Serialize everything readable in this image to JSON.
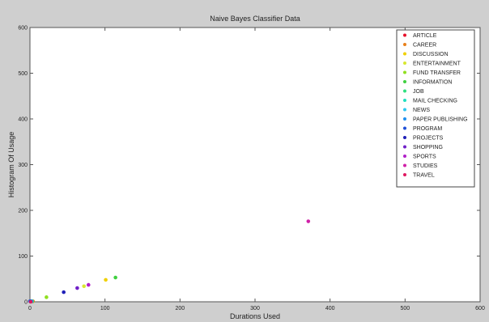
{
  "chart_data": {
    "type": "scatter",
    "title": "Naive Bayes Classifier Data",
    "xlabel": "Durations Used",
    "ylabel": "Histogram Of Usage",
    "xlim": [
      0,
      600
    ],
    "ylim": [
      0,
      600
    ],
    "xticks": [
      0,
      100,
      200,
      300,
      400,
      500,
      600
    ],
    "yticks": [
      0,
      100,
      200,
      300,
      400,
      500,
      600
    ],
    "grid": false,
    "legend_position": "top-right",
    "background": "#ffffff",
    "figure_background": "#cfcfcf",
    "series": [
      {
        "name": "ARTICLE",
        "color": "#e8102a",
        "x": 2,
        "y": 1
      },
      {
        "name": "CAREER",
        "color": "#e8801a",
        "x": 4,
        "y": 1
      },
      {
        "name": "DISCUSSION",
        "color": "#f0d000",
        "x": 101,
        "y": 48
      },
      {
        "name": "ENTERTAINMENT",
        "color": "#d8e830",
        "x": 72,
        "y": 34
      },
      {
        "name": "FUND TRANSFER",
        "color": "#90e020",
        "x": 22,
        "y": 10
      },
      {
        "name": "INFORMATION",
        "color": "#40d040",
        "x": 114,
        "y": 53
      },
      {
        "name": "JOB",
        "color": "#30e080",
        "x": 3,
        "y": 1
      },
      {
        "name": "MAIL CHECKING",
        "color": "#20e0c0",
        "x": 1,
        "y": 1
      },
      {
        "name": "NEWS",
        "color": "#30c8f0",
        "x": 1,
        "y": 1
      },
      {
        "name": "PAPER PUBLISHING",
        "color": "#2090f0",
        "x": 2,
        "y": 1
      },
      {
        "name": "PROGRAM",
        "color": "#2050d8",
        "x": 0,
        "y": 1
      },
      {
        "name": "PROJECTS",
        "color": "#2020b8",
        "x": 45,
        "y": 21
      },
      {
        "name": "SHOPPING",
        "color": "#7020c8",
        "x": 63,
        "y": 30
      },
      {
        "name": "SPORTS",
        "color": "#b020c8",
        "x": 78,
        "y": 37
      },
      {
        "name": "STUDIES",
        "color": "#d020a8",
        "x": 371,
        "y": 176
      },
      {
        "name": "TRAVEL",
        "color": "#e01860",
        "x": 1,
        "y": 0
      }
    ]
  }
}
